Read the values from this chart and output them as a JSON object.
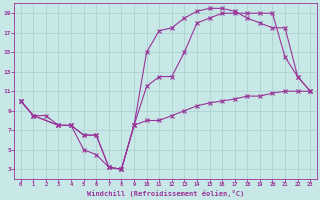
{
  "bg_color": "#c8e8e8",
  "grid_color": "#a8cccc",
  "line_color": "#993399",
  "xlabel": "Windchill (Refroidissement éolien,°C)",
  "xlim": [
    -0.5,
    23.5
  ],
  "ylim": [
    2.0,
    20.0
  ],
  "xticks": [
    0,
    1,
    2,
    3,
    4,
    5,
    6,
    7,
    8,
    9,
    10,
    11,
    12,
    13,
    14,
    15,
    16,
    17,
    18,
    19,
    20,
    21,
    22,
    23
  ],
  "yticks": [
    3,
    5,
    7,
    9,
    11,
    13,
    15,
    17,
    19
  ],
  "line1_x": [
    0,
    1,
    2,
    3,
    4,
    5,
    6,
    7,
    8,
    9,
    10,
    11,
    12,
    13,
    14,
    15,
    16,
    17,
    18,
    19,
    20,
    21,
    22,
    23
  ],
  "line1_y": [
    10,
    8.5,
    8.5,
    7.5,
    7.5,
    5.0,
    4.5,
    3.2,
    3.0,
    7.5,
    8.0,
    8.0,
    8.5,
    9.0,
    9.5,
    9.8,
    10.0,
    10.2,
    10.5,
    10.5,
    10.8,
    11.0,
    11.0,
    11.0
  ],
  "line2_x": [
    0,
    1,
    3,
    4,
    5,
    6,
    7,
    8,
    9,
    10,
    11,
    12,
    13,
    14,
    15,
    16,
    17,
    18,
    19,
    20,
    21,
    22,
    23
  ],
  "line2_y": [
    10,
    8.5,
    7.5,
    7.5,
    6.5,
    6.5,
    3.2,
    3.0,
    7.5,
    11.5,
    12.5,
    12.5,
    15.0,
    18.0,
    18.5,
    19.0,
    19.0,
    19.0,
    19.0,
    19.0,
    14.5,
    12.5,
    11.0
  ],
  "line3_x": [
    0,
    1,
    3,
    4,
    5,
    6,
    7,
    8,
    9,
    10,
    11,
    12,
    13,
    14,
    15,
    16,
    17,
    18,
    19,
    20,
    21,
    22,
    23
  ],
  "line3_y": [
    10,
    8.5,
    7.5,
    7.5,
    6.5,
    6.5,
    3.2,
    3.0,
    7.5,
    15.0,
    17.2,
    17.5,
    18.5,
    19.2,
    19.5,
    19.5,
    19.2,
    18.5,
    18.0,
    17.5,
    17.5,
    12.5,
    11.0
  ]
}
